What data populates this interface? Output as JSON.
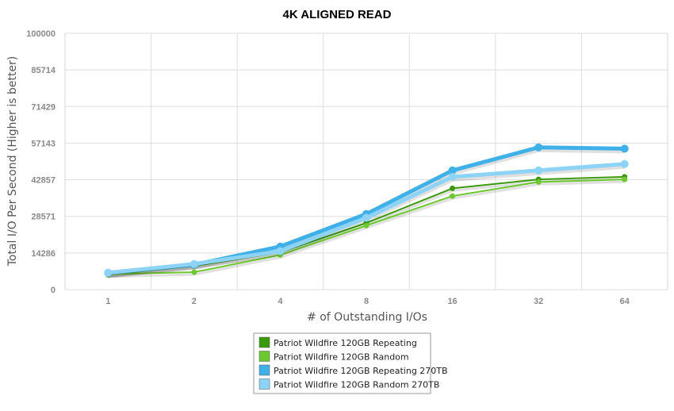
{
  "chart_data": {
    "type": "line",
    "title": "4K ALIGNED READ",
    "xlabel": "# of Outstanding I/Os",
    "ylabel": "Total I/O Per Second (Higher is better)",
    "categories": [
      "1",
      "2",
      "4",
      "8",
      "16",
      "32",
      "64"
    ],
    "ylim": [
      0,
      100000
    ],
    "yticks": [
      "0",
      "14286",
      "28571",
      "42857",
      "57143",
      "71429",
      "85714",
      "100000"
    ],
    "grid": true,
    "legend_position": "bottom-center",
    "series": [
      {
        "name": "Patriot Wildfire 120GB Repeating",
        "color": "#3a9a0c",
        "values": [
          5800,
          9200,
          14500,
          26000,
          39500,
          43000,
          44000
        ]
      },
      {
        "name": "Patriot Wildfire 120GB Random",
        "color": "#6cc82e",
        "values": [
          6000,
          6800,
          13500,
          25000,
          36500,
          42000,
          43000
        ]
      },
      {
        "name": "Patriot Wildfire 120GB Repeating 270TB",
        "color": "#3fb1e8",
        "values": [
          6500,
          9700,
          16800,
          29500,
          46500,
          55500,
          55000
        ]
      },
      {
        "name": "Patriot Wildfire 120GB Random 270TB",
        "color": "#8dd3f5",
        "values": [
          6600,
          10000,
          15000,
          28000,
          44000,
          46500,
          49000
        ]
      }
    ]
  }
}
